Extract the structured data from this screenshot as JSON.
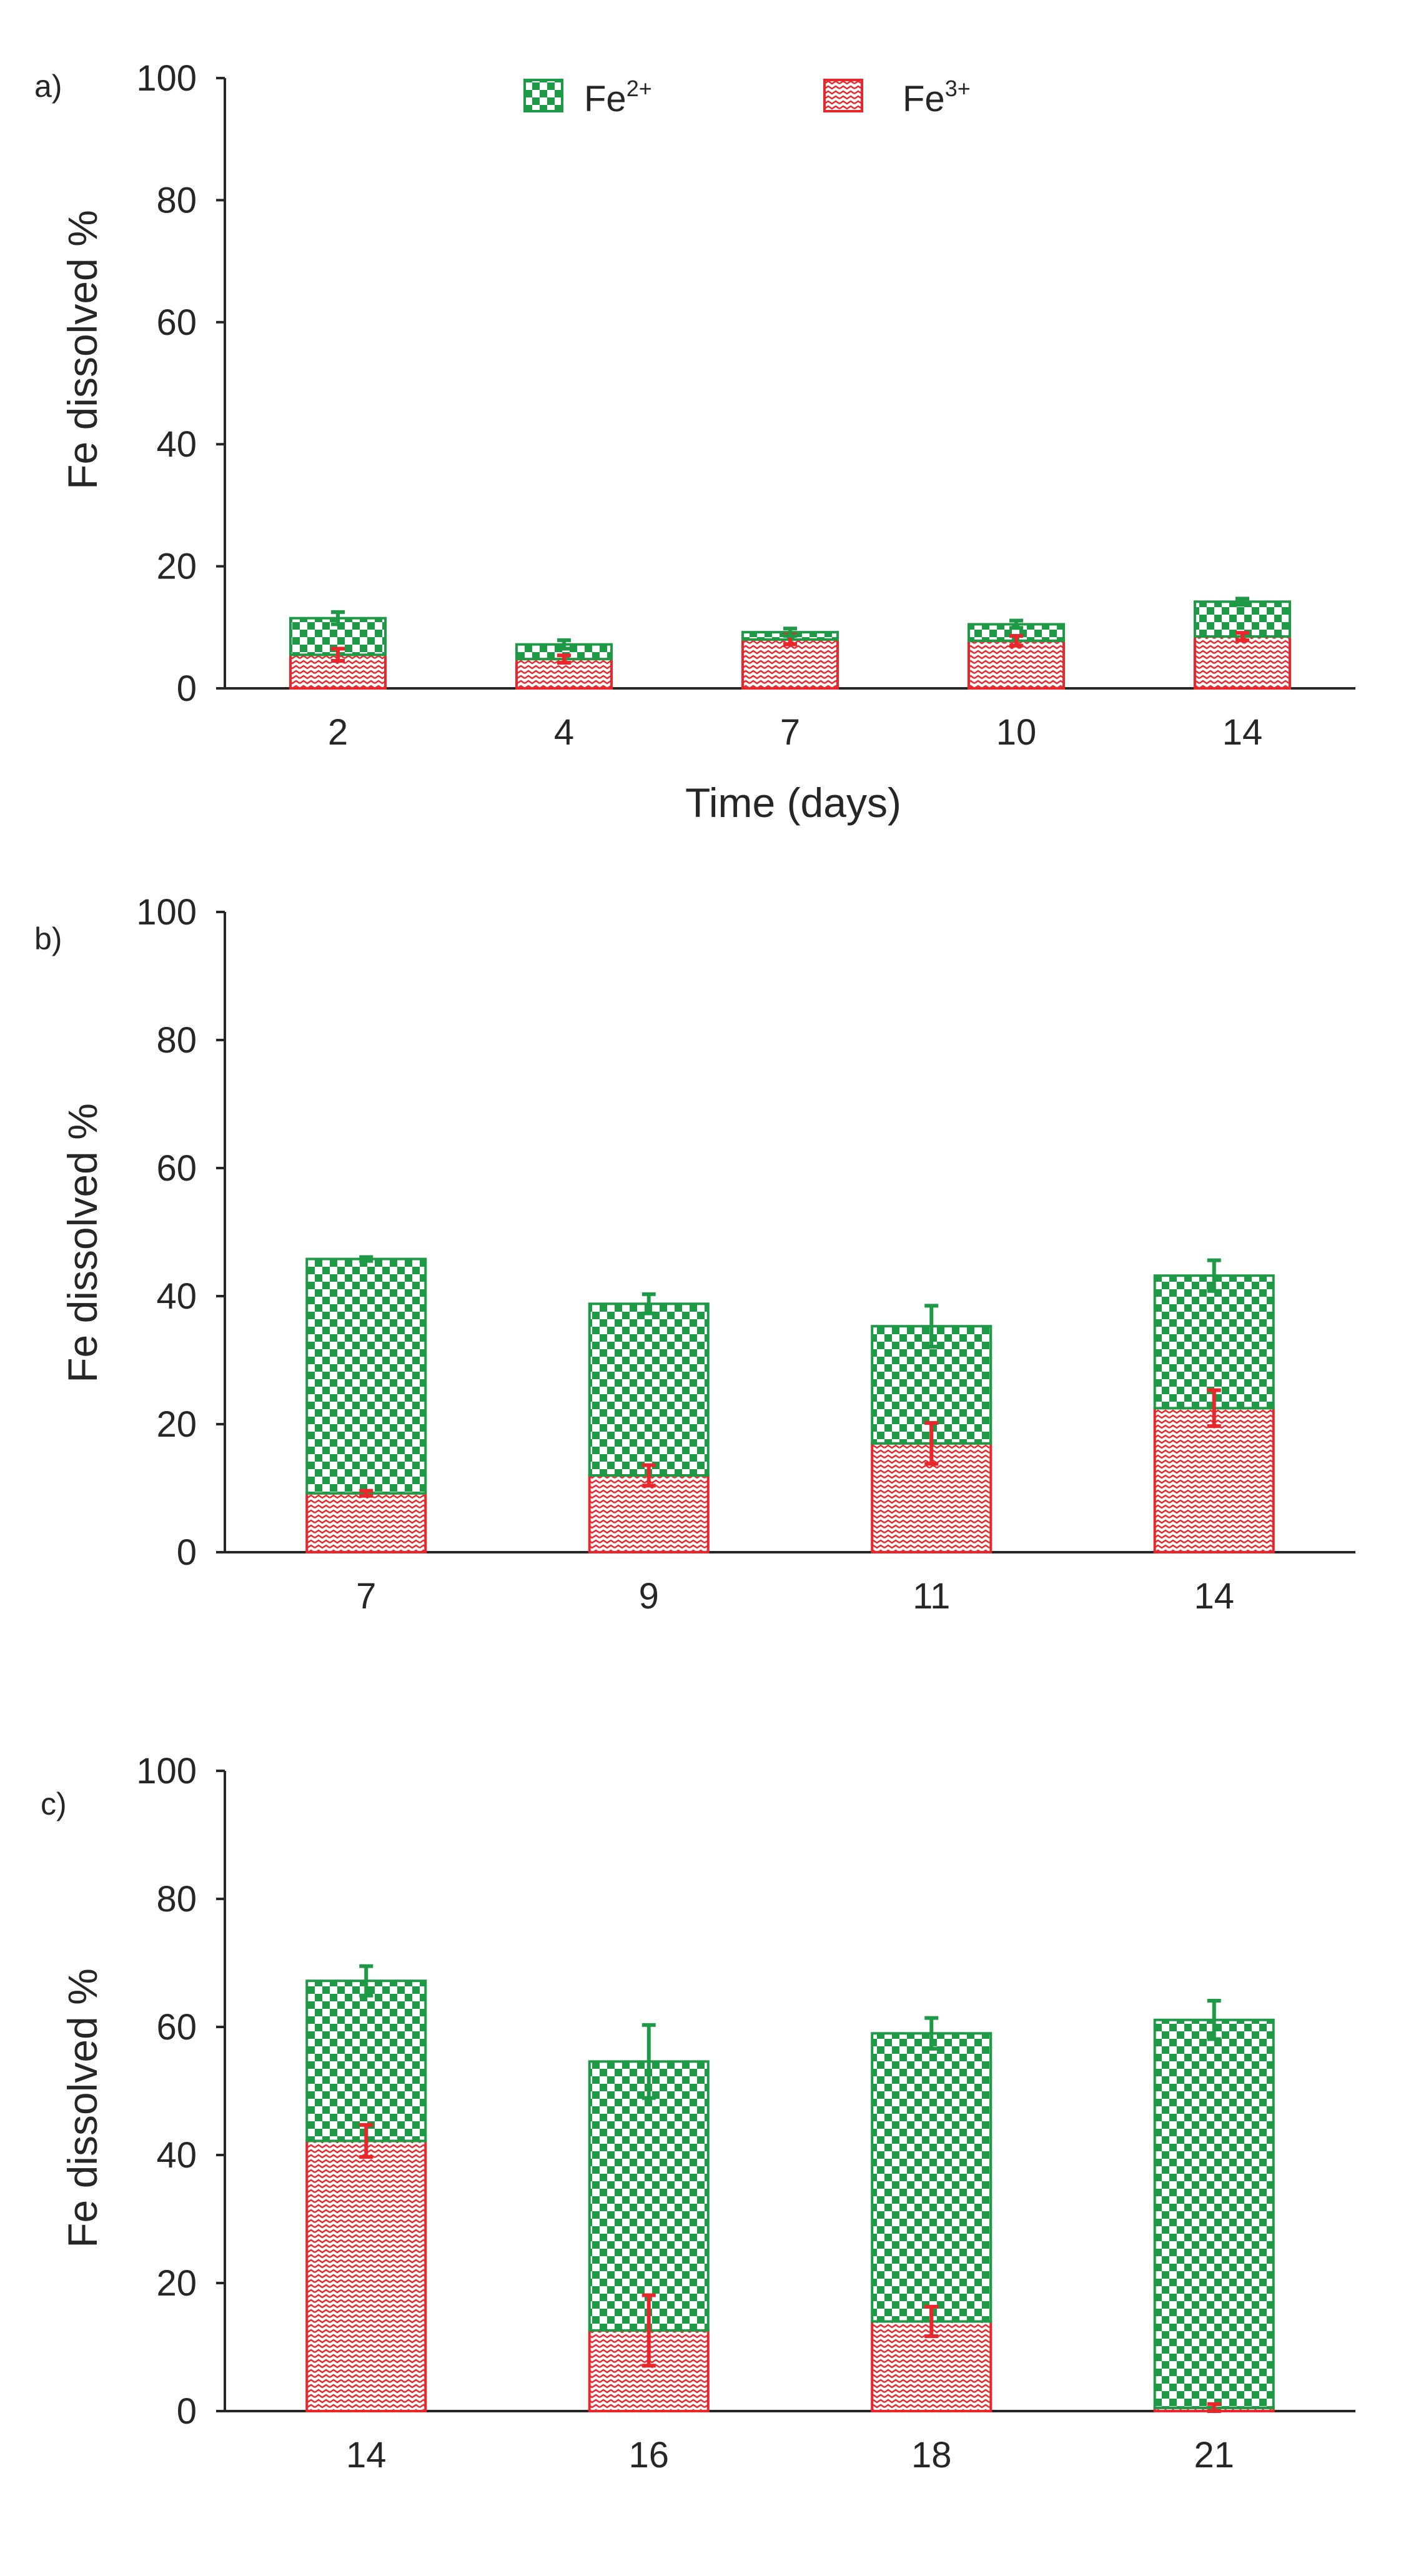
{
  "legend": {
    "fe2": {
      "base": "Fe",
      "sup": "2+",
      "color": "#1e9a46"
    },
    "fe3": {
      "base": "Fe",
      "sup": "3+",
      "color": "#e8262b"
    }
  },
  "chart_data": [
    {
      "type": "bar",
      "stacked": true,
      "panel_label": "a)",
      "title": "",
      "xlabel": "Time (days)",
      "ylabel": "Fe dissolved %",
      "ylim": [
        0,
        100
      ],
      "yticks": [
        0,
        20,
        40,
        60,
        80,
        100
      ],
      "categories": [
        "2",
        "4",
        "7",
        "10",
        "14"
      ],
      "series": [
        {
          "name": "Fe3+",
          "values": [
            5.5,
            4.8,
            8.0,
            7.8,
            8.5
          ],
          "errors": [
            1.0,
            0.6,
            0.8,
            0.8,
            0.6
          ]
        },
        {
          "name": "Fe2+",
          "values": [
            6.0,
            2.4,
            1.2,
            2.7,
            5.7
          ],
          "errors": [
            1.0,
            0.7,
            0.6,
            0.6,
            0.5
          ]
        }
      ]
    },
    {
      "type": "bar",
      "stacked": true,
      "panel_label": "b)",
      "title": "",
      "xlabel": "",
      "ylabel": "Fe dissolved %",
      "ylim": [
        0,
        100
      ],
      "yticks": [
        0,
        20,
        40,
        60,
        80,
        100
      ],
      "categories": [
        "7",
        "9",
        "11",
        "14"
      ],
      "series": [
        {
          "name": "Fe3+",
          "values": [
            9.2,
            12.0,
            17.0,
            22.5
          ],
          "errors": [
            0.4,
            1.6,
            3.2,
            2.8
          ]
        },
        {
          "name": "Fe2+",
          "values": [
            36.6,
            26.8,
            18.3,
            20.7
          ],
          "errors": [
            0.3,
            1.5,
            3.2,
            2.4
          ]
        }
      ]
    },
    {
      "type": "bar",
      "stacked": true,
      "panel_label": "c)",
      "title": "",
      "xlabel": "",
      "ylabel": "Fe dissolved %",
      "ylim": [
        0,
        100
      ],
      "yticks": [
        0,
        20,
        40,
        60,
        80,
        100
      ],
      "categories": [
        "14",
        "16",
        "18",
        "21"
      ],
      "series": [
        {
          "name": "Fe3+",
          "values": [
            42.2,
            12.6,
            14.0,
            0.5
          ],
          "errors": [
            2.5,
            5.5,
            2.3,
            0.6
          ]
        },
        {
          "name": "Fe2+",
          "values": [
            25.0,
            42.0,
            45.0,
            60.6
          ],
          "errors": [
            2.3,
            5.7,
            2.4,
            3.0
          ]
        }
      ]
    }
  ]
}
